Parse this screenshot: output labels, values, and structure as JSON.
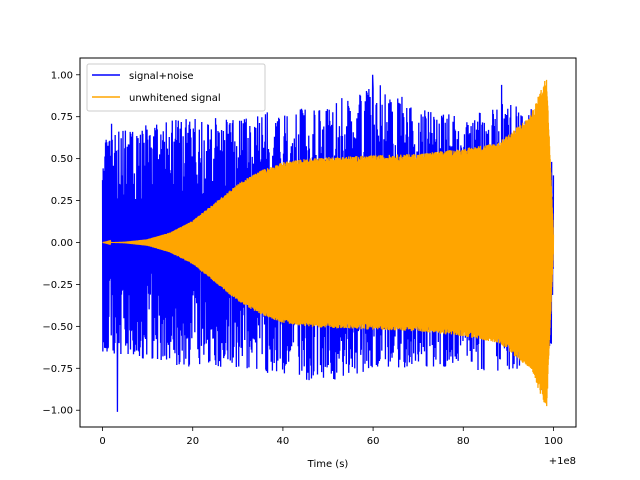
{
  "chart_data": {
    "type": "line",
    "title": "",
    "xlabel": "Time (s)",
    "ylabel": "",
    "x_offset_label": "+1e8",
    "xlim": [
      -5,
      105
    ],
    "ylim": [
      -1.1,
      1.1
    ],
    "x_ticks": [
      0,
      20,
      40,
      60,
      80,
      100
    ],
    "x_tick_labels": [
      "0",
      "20",
      "40",
      "60",
      "80",
      "100"
    ],
    "y_ticks": [
      -1.0,
      -0.75,
      -0.5,
      -0.25,
      0.0,
      0.25,
      0.5,
      0.75,
      1.0
    ],
    "y_tick_labels": [
      "−1.00",
      "−0.75",
      "−0.50",
      "−0.25",
      "0.00",
      "0.25",
      "0.50",
      "0.75",
      "1.00"
    ],
    "grid": false,
    "legend_position": "top-left",
    "series": [
      {
        "name": "signal+noise",
        "color": "#0000ff",
        "envelope": {
          "x": [
            0,
            10,
            20,
            30,
            40,
            50,
            60,
            70,
            80,
            90,
            95,
            98,
            100
          ],
          "upper": [
            0.75,
            0.7,
            0.75,
            0.75,
            0.8,
            0.8,
            1.0,
            0.8,
            0.75,
            0.85,
            0.8,
            0.82,
            0.45
          ],
          "lower": [
            -0.65,
            -0.7,
            -0.75,
            -0.75,
            -0.8,
            -0.85,
            -0.75,
            -0.75,
            -0.75,
            -0.8,
            -0.7,
            -0.95,
            -0.5
          ]
        },
        "peaks": [
          {
            "x": 3.3,
            "y": -1.01
          },
          {
            "x": 59.9,
            "y": 1.0
          },
          {
            "x": 88.5,
            "y": 0.94
          }
        ]
      },
      {
        "name": "unwhitened signal",
        "color": "#ffa500",
        "envelope": {
          "x": [
            0,
            5,
            10,
            15,
            20,
            25,
            30,
            35,
            40,
            45,
            50,
            60,
            70,
            80,
            88,
            95,
            98.5,
            99.3,
            100
          ],
          "amplitude": [
            0.0,
            0.005,
            0.02,
            0.06,
            0.13,
            0.24,
            0.35,
            0.43,
            0.48,
            0.5,
            0.51,
            0.52,
            0.53,
            0.56,
            0.6,
            0.76,
            1.0,
            0.5,
            0.05
          ]
        }
      }
    ]
  }
}
